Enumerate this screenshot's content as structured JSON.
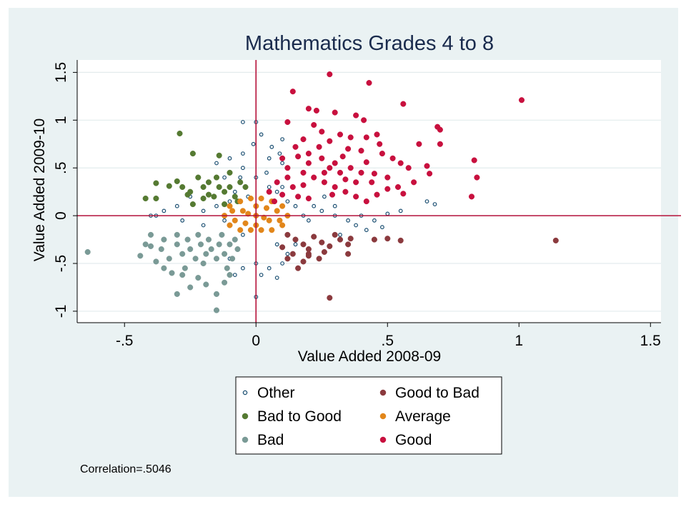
{
  "chart_data": {
    "type": "scatter",
    "title": "Mathematics Grades 4 to 8",
    "xlabel": "Value Added 2008-09",
    "ylabel": "Value Added 2009-10",
    "xlim": [
      -0.68,
      1.54
    ],
    "ylim": [
      -1.12,
      1.63
    ],
    "xticks": [
      -0.5,
      0,
      0.5,
      1,
      1.5
    ],
    "xtick_labels": [
      "-.5",
      "0",
      ".5",
      "1",
      "1.5"
    ],
    "yticks": [
      -1,
      -0.5,
      0,
      0.5,
      1,
      1.5
    ],
    "ytick_labels": [
      "-1",
      "-.5",
      "0",
      ".5",
      "1",
      "1.5"
    ],
    "reference_lines": {
      "x": 0,
      "y": 0,
      "color": "#b5123a"
    },
    "grid": "horizontal",
    "legend_position": "bottom",
    "legend": [
      "Other",
      "Good to Bad",
      "Bad to Good",
      "Average",
      "Bad",
      "Good"
    ],
    "annotation": "Correlation=.5046",
    "series": [
      {
        "name": "Other",
        "color": "#1b4f72",
        "marker": "hollow-circle",
        "points": [
          [
            -0.05,
            0.98
          ],
          [
            0,
            0.98
          ],
          [
            0.02,
            0.85
          ],
          [
            0.1,
            0.8
          ],
          [
            0.06,
            0.72
          ],
          [
            -0.1,
            0.6
          ],
          [
            -0.05,
            0.65
          ],
          [
            0.05,
            0.6
          ],
          [
            -0.15,
            0.55
          ],
          [
            -0.05,
            0.5
          ],
          [
            0.1,
            0.55
          ],
          [
            -0.2,
            0.3
          ],
          [
            -0.25,
            0.2
          ],
          [
            -0.3,
            0.1
          ],
          [
            -0.35,
            0.05
          ],
          [
            -0.38,
            0.0
          ],
          [
            -0.4,
            0.0
          ],
          [
            -0.28,
            -0.05
          ],
          [
            -0.2,
            -0.1
          ],
          [
            -0.12,
            -0.05
          ],
          [
            -0.1,
            0.15
          ],
          [
            -0.08,
            0.25
          ],
          [
            0.08,
            0.25
          ],
          [
            0.12,
            0.15
          ],
          [
            0.15,
            0.1
          ],
          [
            0.18,
            0.0
          ],
          [
            0.2,
            -0.05
          ],
          [
            0.25,
            0.05
          ],
          [
            0.3,
            0.0
          ],
          [
            0.35,
            -0.05
          ],
          [
            0.4,
            0.0
          ],
          [
            0.45,
            -0.05
          ],
          [
            0.5,
            0.02
          ],
          [
            0.55,
            0.05
          ],
          [
            0.65,
            0.15
          ],
          [
            0.68,
            0.12
          ],
          [
            0.3,
            0.1
          ],
          [
            0.22,
            0.1
          ],
          [
            -0.1,
            -0.3
          ],
          [
            -0.1,
            -0.45
          ],
          [
            -0.05,
            -0.55
          ],
          [
            -0.08,
            -0.62
          ],
          [
            0.0,
            -0.5
          ],
          [
            0.02,
            -0.62
          ],
          [
            0.05,
            -0.55
          ],
          [
            0.0,
            -0.85
          ],
          [
            0.08,
            -0.65
          ],
          [
            0.1,
            -0.5
          ],
          [
            0.12,
            -0.4
          ],
          [
            -0.05,
            -0.2
          ],
          [
            0.15,
            -0.3
          ],
          [
            0.08,
            -0.3
          ],
          [
            -0.2,
            0.05
          ],
          [
            -0.15,
            0.1
          ],
          [
            0.05,
            0.3
          ],
          [
            0.0,
            0.4
          ],
          [
            -0.03,
            0.2
          ],
          [
            0.1,
            0.3
          ],
          [
            0.38,
            -0.1
          ],
          [
            0.32,
            -0.2
          ],
          [
            0.42,
            -0.15
          ],
          [
            0.48,
            -0.12
          ],
          [
            0.26,
            0.2
          ],
          [
            -0.12,
            0.4
          ],
          [
            -0.06,
            0.4
          ],
          [
            0.04,
            0.45
          ],
          [
            0.09,
            0.65
          ],
          [
            -0.01,
            0.75
          ]
        ]
      },
      {
        "name": "Good to Bad",
        "color": "#8b3a3e",
        "marker": "filled-circle",
        "points": [
          [
            0.12,
            -0.2
          ],
          [
            0.15,
            -0.25
          ],
          [
            0.18,
            -0.3
          ],
          [
            0.2,
            -0.35
          ],
          [
            0.22,
            -0.22
          ],
          [
            0.25,
            -0.28
          ],
          [
            0.28,
            -0.32
          ],
          [
            0.3,
            -0.2
          ],
          [
            0.32,
            -0.25
          ],
          [
            0.35,
            -0.3
          ],
          [
            0.14,
            -0.4
          ],
          [
            0.2,
            -0.4
          ],
          [
            0.24,
            -0.45
          ],
          [
            0.12,
            -0.45
          ],
          [
            0.16,
            -0.55
          ],
          [
            0.2,
            -0.42
          ],
          [
            0.28,
            -0.86
          ],
          [
            0.35,
            -0.4
          ],
          [
            0.36,
            -0.24
          ],
          [
            0.45,
            -0.25
          ],
          [
            0.5,
            -0.24
          ],
          [
            0.55,
            -0.26
          ],
          [
            1.14,
            -0.26
          ],
          [
            0.26,
            -0.38
          ],
          [
            0.18,
            -0.48
          ],
          [
            0.1,
            -0.33
          ]
        ]
      },
      {
        "name": "Bad to Good",
        "color": "#557a32",
        "marker": "filled-circle",
        "points": [
          [
            -0.29,
            0.86
          ],
          [
            -0.24,
            0.65
          ],
          [
            -0.14,
            0.63
          ],
          [
            -0.38,
            0.34
          ],
          [
            -0.3,
            0.36
          ],
          [
            -0.26,
            0.22
          ],
          [
            -0.33,
            0.31
          ],
          [
            -0.28,
            0.3
          ],
          [
            -0.22,
            0.4
          ],
          [
            -0.2,
            0.3
          ],
          [
            -0.18,
            0.35
          ],
          [
            -0.16,
            0.2
          ],
          [
            -0.12,
            0.25
          ],
          [
            -0.1,
            0.3
          ],
          [
            -0.15,
            0.4
          ],
          [
            -0.08,
            0.2
          ],
          [
            -0.06,
            0.35
          ],
          [
            -0.04,
            0.3
          ],
          [
            -0.1,
            0.45
          ],
          [
            -0.42,
            0.18
          ],
          [
            -0.38,
            0.18
          ],
          [
            -0.24,
            0.12
          ],
          [
            -0.12,
            0.12
          ],
          [
            -0.07,
            0.15
          ],
          [
            -0.2,
            0.18
          ],
          [
            -0.14,
            0.3
          ],
          [
            -0.18,
            0.22
          ],
          [
            -0.25,
            0.25
          ]
        ]
      },
      {
        "name": "Average",
        "color": "#e2861a",
        "marker": "filled-circle",
        "points": [
          [
            -0.12,
            0.0
          ],
          [
            -0.1,
            -0.1
          ],
          [
            -0.1,
            0.1
          ],
          [
            -0.06,
            -0.15
          ],
          [
            -0.06,
            0.15
          ],
          [
            -0.02,
            -0.15
          ],
          [
            -0.02,
            0.18
          ],
          [
            0.02,
            -0.15
          ],
          [
            0.02,
            0.18
          ],
          [
            0.06,
            -0.15
          ],
          [
            0.06,
            0.15
          ],
          [
            0.1,
            -0.1
          ],
          [
            0.1,
            0.1
          ],
          [
            0.12,
            0.0
          ],
          [
            0.0,
            0.0
          ],
          [
            -0.05,
            0.05
          ],
          [
            0.05,
            -0.05
          ],
          [
            0.08,
            0.05
          ],
          [
            -0.08,
            -0.05
          ],
          [
            0.0,
            0.1
          ],
          [
            0.0,
            -0.1
          ],
          [
            0.04,
            0.08
          ],
          [
            -0.04,
            -0.08
          ],
          [
            0.09,
            -0.05
          ],
          [
            -0.09,
            0.05
          ],
          [
            0.03,
            -0.02
          ],
          [
            -0.03,
            0.02
          ]
        ]
      },
      {
        "name": "Bad",
        "color": "#7a9a96",
        "marker": "filled-circle",
        "points": [
          [
            -0.64,
            -0.38
          ],
          [
            -0.44,
            -0.42
          ],
          [
            -0.42,
            -0.3
          ],
          [
            -0.4,
            -0.2
          ],
          [
            -0.38,
            -0.48
          ],
          [
            -0.36,
            -0.35
          ],
          [
            -0.35,
            -0.25
          ],
          [
            -0.33,
            -0.45
          ],
          [
            -0.32,
            -0.6
          ],
          [
            -0.3,
            -0.3
          ],
          [
            -0.3,
            -0.2
          ],
          [
            -0.28,
            -0.4
          ],
          [
            -0.27,
            -0.55
          ],
          [
            -0.26,
            -0.25
          ],
          [
            -0.25,
            -0.35
          ],
          [
            -0.23,
            -0.45
          ],
          [
            -0.22,
            -0.2
          ],
          [
            -0.21,
            -0.3
          ],
          [
            -0.2,
            -0.5
          ],
          [
            -0.19,
            -0.4
          ],
          [
            -0.18,
            -0.25
          ],
          [
            -0.17,
            -0.35
          ],
          [
            -0.15,
            -0.45
          ],
          [
            -0.14,
            -0.3
          ],
          [
            -0.13,
            -0.2
          ],
          [
            -0.12,
            -0.4
          ],
          [
            -0.11,
            -0.55
          ],
          [
            -0.1,
            -0.3
          ],
          [
            -0.09,
            -0.45
          ],
          [
            -0.08,
            -0.25
          ],
          [
            -0.07,
            -0.35
          ],
          [
            -0.3,
            -0.82
          ],
          [
            -0.25,
            -0.75
          ],
          [
            -0.15,
            -0.82
          ],
          [
            -0.19,
            -0.72
          ],
          [
            -0.15,
            -0.99
          ],
          [
            -0.1,
            -0.62
          ],
          [
            -0.12,
            -0.7
          ],
          [
            -0.4,
            -0.32
          ],
          [
            -0.35,
            -0.55
          ],
          [
            -0.22,
            -0.65
          ],
          [
            -0.28,
            -0.62
          ]
        ]
      },
      {
        "name": "Good",
        "color": "#c8103e",
        "marker": "filled-circle",
        "points": [
          [
            0.28,
            1.48
          ],
          [
            0.43,
            1.39
          ],
          [
            0.14,
            1.3
          ],
          [
            1.01,
            1.21
          ],
          [
            0.56,
            1.17
          ],
          [
            0.2,
            1.12
          ],
          [
            0.23,
            1.1
          ],
          [
            0.3,
            1.08
          ],
          [
            0.38,
            1.05
          ],
          [
            0.41,
            1.0
          ],
          [
            0.12,
            0.98
          ],
          [
            0.22,
            0.95
          ],
          [
            0.69,
            0.93
          ],
          [
            0.7,
            0.9
          ],
          [
            0.25,
            0.88
          ],
          [
            0.32,
            0.85
          ],
          [
            0.36,
            0.82
          ],
          [
            0.42,
            0.82
          ],
          [
            0.46,
            0.85
          ],
          [
            0.18,
            0.8
          ],
          [
            0.28,
            0.78
          ],
          [
            0.62,
            0.75
          ],
          [
            0.7,
            0.75
          ],
          [
            0.15,
            0.72
          ],
          [
            0.35,
            0.7
          ],
          [
            0.4,
            0.68
          ],
          [
            0.48,
            0.65
          ],
          [
            0.52,
            0.6
          ],
          [
            0.55,
            0.55
          ],
          [
            0.58,
            0.5
          ],
          [
            0.2,
            0.65
          ],
          [
            0.25,
            0.6
          ],
          [
            0.3,
            0.55
          ],
          [
            0.1,
            0.6
          ],
          [
            0.12,
            0.5
          ],
          [
            0.18,
            0.45
          ],
          [
            0.22,
            0.4
          ],
          [
            0.26,
            0.35
          ],
          [
            0.3,
            0.3
          ],
          [
            0.34,
            0.25
          ],
          [
            0.38,
            0.2
          ],
          [
            0.42,
            0.15
          ],
          [
            0.46,
            0.22
          ],
          [
            0.5,
            0.28
          ],
          [
            0.44,
            0.35
          ],
          [
            0.4,
            0.45
          ],
          [
            0.36,
            0.5
          ],
          [
            0.32,
            0.45
          ],
          [
            0.28,
            0.5
          ],
          [
            0.14,
            0.3
          ],
          [
            0.16,
            0.2
          ],
          [
            0.2,
            0.18
          ],
          [
            0.08,
            0.35
          ],
          [
            0.05,
            0.25
          ],
          [
            0.07,
            0.15
          ],
          [
            0.65,
            0.52
          ],
          [
            0.66,
            0.44
          ],
          [
            0.83,
            0.58
          ],
          [
            0.84,
            0.4
          ],
          [
            0.82,
            0.2
          ],
          [
            0.54,
            0.3
          ],
          [
            0.56,
            0.23
          ],
          [
            0.6,
            0.35
          ],
          [
            0.47,
            0.75
          ],
          [
            0.16,
            0.62
          ],
          [
            0.24,
            0.72
          ],
          [
            0.33,
            0.62
          ],
          [
            0.38,
            0.35
          ],
          [
            0.45,
            0.44
          ],
          [
            0.29,
            0.22
          ],
          [
            0.12,
            0.4
          ],
          [
            0.26,
            0.45
          ],
          [
            0.2,
            0.55
          ],
          [
            0.34,
            0.38
          ],
          [
            0.42,
            0.56
          ],
          [
            0.5,
            0.4
          ],
          [
            0.1,
            0.22
          ],
          [
            0.18,
            0.32
          ]
        ]
      }
    ]
  }
}
